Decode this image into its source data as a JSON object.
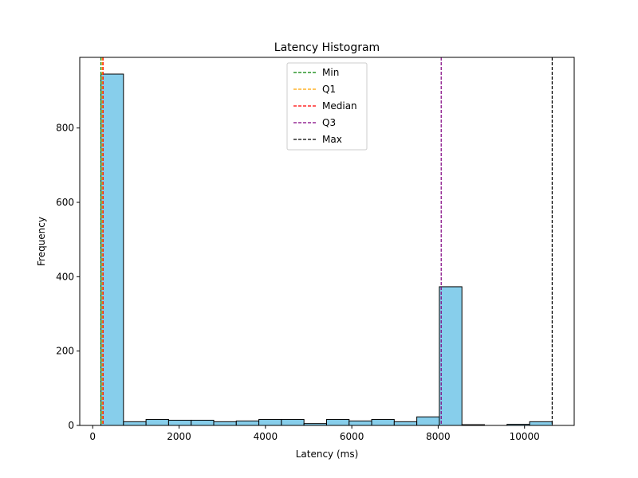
{
  "chart_data": {
    "type": "bar",
    "title": "Latency Histogram",
    "xlabel": "Latency (ms)",
    "ylabel": "Frequency",
    "xlim": [
      -300,
      11150
    ],
    "ylim": [
      0,
      990
    ],
    "x_ticks": [
      0,
      2000,
      4000,
      6000,
      8000,
      10000
    ],
    "y_ticks": [
      0,
      200,
      400,
      600,
      800
    ],
    "bar_color": "#87ceeb",
    "bar_edge_color": "#000000",
    "bins": [
      {
        "start": 190,
        "end": 712.5,
        "count": 945
      },
      {
        "start": 712.5,
        "end": 1235,
        "count": 10
      },
      {
        "start": 1235,
        "end": 1757.5,
        "count": 16
      },
      {
        "start": 1757.5,
        "end": 2280,
        "count": 14
      },
      {
        "start": 2280,
        "end": 2802.5,
        "count": 14
      },
      {
        "start": 2802.5,
        "end": 3325,
        "count": 10
      },
      {
        "start": 3325,
        "end": 3847.5,
        "count": 12
      },
      {
        "start": 3847.5,
        "end": 4370,
        "count": 16
      },
      {
        "start": 4370,
        "end": 4892.5,
        "count": 16
      },
      {
        "start": 4892.5,
        "end": 5415,
        "count": 5
      },
      {
        "start": 5415,
        "end": 5937.5,
        "count": 16
      },
      {
        "start": 5937.5,
        "end": 6460,
        "count": 12
      },
      {
        "start": 6460,
        "end": 6982.5,
        "count": 16
      },
      {
        "start": 6982.5,
        "end": 7505,
        "count": 10
      },
      {
        "start": 7505,
        "end": 8027.5,
        "count": 23
      },
      {
        "start": 8027.5,
        "end": 8550,
        "count": 373
      },
      {
        "start": 8550,
        "end": 9072.5,
        "count": 2
      },
      {
        "start": 9072.5,
        "end": 9595,
        "count": 0
      },
      {
        "start": 9595,
        "end": 10117.5,
        "count": 3
      },
      {
        "start": 10117.5,
        "end": 10640,
        "count": 10
      }
    ],
    "reference_lines": [
      {
        "name": "Min",
        "value": 190,
        "color": "#008000"
      },
      {
        "name": "Q1",
        "value": 220,
        "color": "#ffa500"
      },
      {
        "name": "Median",
        "value": 240,
        "color": "#ff0000"
      },
      {
        "name": "Q3",
        "value": 8070,
        "color": "#800080"
      },
      {
        "name": "Max",
        "value": 10640,
        "color": "#000000"
      }
    ],
    "legend_position": "top-center",
    "grid": false
  }
}
